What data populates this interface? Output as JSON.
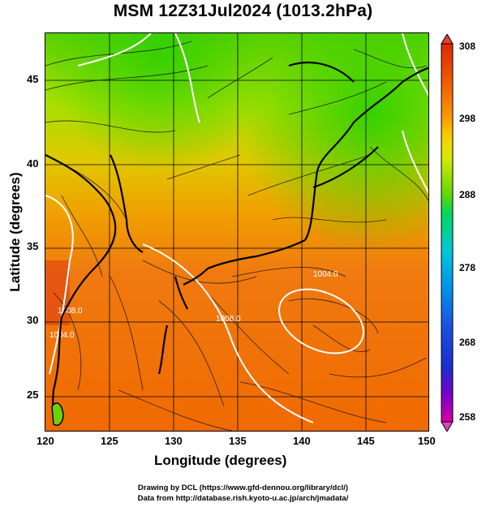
{
  "title": "MSM 12Z31Jul2024 (1013.2hPa)",
  "xlabel": "Longitude (degrees)",
  "ylabel": "Latitude  (degrees)",
  "x_ticks": [
    "120",
    "125",
    "130",
    "135",
    "140",
    "145",
    "150"
  ],
  "y_ticks": [
    "25",
    "30",
    "35",
    "40",
    "45"
  ],
  "colorbar": {
    "labels": [
      "308",
      "298",
      "288",
      "278",
      "268",
      "258"
    ],
    "range": [
      258,
      308
    ],
    "colors": [
      "#d4009d",
      "#7a00c8",
      "#1a2fd0",
      "#0090e8",
      "#00c8d8",
      "#00d870",
      "#28d800",
      "#98e000",
      "#e8e800",
      "#f8c000",
      "#f89000",
      "#f05a00",
      "#e02800"
    ]
  },
  "contour_labels": [
    "1004.0",
    "1008.0",
    "1008.0",
    "1004.0"
  ],
  "credits": [
    "Drawing by DCL (https://www.gfd-dennou.org/library/dcl/)",
    "Data from http://database.rish.kyoto-u.ac.jp/arch/jmadata/"
  ],
  "colors": {
    "warm": "#f07a00",
    "mid": "#d8e000",
    "cool": "#3ad800",
    "contour": "#ffffff",
    "coast": "#000000"
  }
}
